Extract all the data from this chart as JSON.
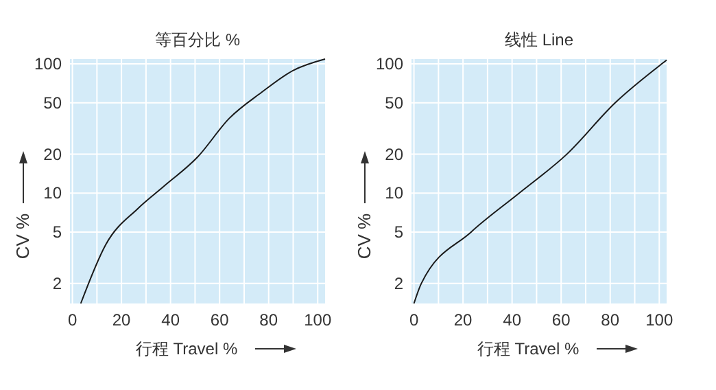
{
  "chart_data": [
    {
      "type": "line",
      "title": "等百分比 %",
      "xlabel": "行程 Travel %",
      "ylabel": "CV %",
      "color": "#1a1a1a",
      "grid": true,
      "x": [
        3.4,
        13.6,
        26.7,
        37.3,
        51,
        64,
        77,
        90,
        103
      ],
      "values": [
        1.4,
        4.0,
        7.6,
        11.3,
        19,
        38,
        60,
        89,
        109
      ],
      "log": true,
      "xlim": [
        -1,
        103
      ],
      "xticks": [
        0,
        {
          "value": 10,
          "label": null
        },
        20,
        {
          "value": 30,
          "label": null
        },
        40,
        {
          "value": 50,
          "label": null
        },
        60,
        {
          "value": 70,
          "label": null
        },
        80,
        {
          "value": 90,
          "label": null
        },
        100
      ],
      "ylim": [
        1.4,
        109
      ],
      "yticks": [
        2,
        5,
        10,
        20,
        50,
        100
      ]
    },
    {
      "type": "line",
      "title": "线性 Line",
      "xlabel": "行程 Travel %",
      "ylabel": "CV %",
      "color": "#1a1a1a",
      "grid": true,
      "x": [
        0,
        3,
        23.3,
        42.9,
        62.3,
        82,
        101,
        103
      ],
      "values": [
        1.4,
        2,
        5,
        10,
        20,
        50,
        100,
        107
      ],
      "log": true,
      "xlim": [
        -1,
        103
      ],
      "xticks": [
        0,
        {
          "value": 10,
          "label": null
        },
        20,
        {
          "value": 30,
          "label": null
        },
        40,
        {
          "value": 50,
          "label": null
        },
        60,
        {
          "value": 70,
          "label": null
        },
        80,
        {
          "value": 90,
          "label": null
        },
        100
      ],
      "ylim": [
        1.4,
        109
      ],
      "yticks": [
        2,
        5,
        10,
        20,
        50,
        100
      ]
    }
  ]
}
